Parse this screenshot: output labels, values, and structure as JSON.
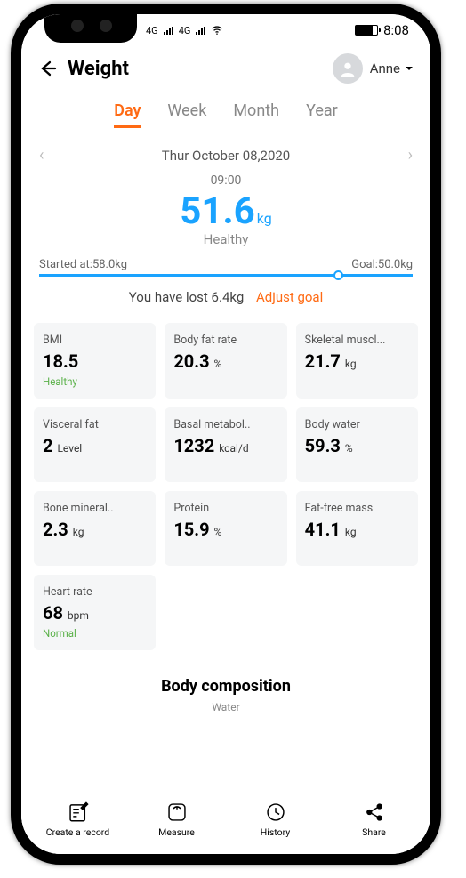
{
  "status_bar": {
    "signal_label_1": "4G",
    "signal_label_2": "4G",
    "time": "8:08",
    "battery_level_pct": 80
  },
  "header": {
    "title": "Weight",
    "user_name": "Anne"
  },
  "tabs": {
    "items": [
      "Day",
      "Week",
      "Month",
      "Year"
    ],
    "active_index": 0
  },
  "date_nav": {
    "date": "Thur October 08,2020"
  },
  "measurement": {
    "time": "09:00",
    "value": "51.6",
    "unit": "kg",
    "status": "Healthy"
  },
  "progress": {
    "start_label": "Started at:58.0kg",
    "goal_label": "Goal:50.0kg",
    "progress_pct": 80,
    "message": "You have lost 6.4kg",
    "adjust_label": "Adjust goal"
  },
  "metrics": [
    {
      "title": "BMI",
      "value": "18.5",
      "unit": "",
      "status": "Healthy",
      "status_class": "status-healthy"
    },
    {
      "title": "Body fat rate",
      "value": "20.3",
      "unit": "%",
      "status": "",
      "status_class": ""
    },
    {
      "title": "Skeletal muscl...",
      "value": "21.7",
      "unit": "kg",
      "status": "",
      "status_class": ""
    },
    {
      "title": "Visceral fat",
      "value": "2",
      "unit": "Level",
      "status": "",
      "status_class": ""
    },
    {
      "title": "Basal metabol..",
      "value": "1232",
      "unit": "kcal/d",
      "status": "",
      "status_class": ""
    },
    {
      "title": "Body water",
      "value": "59.3",
      "unit": "%",
      "status": "",
      "status_class": ""
    },
    {
      "title": "Bone mineral..",
      "value": "2.3",
      "unit": "kg",
      "status": "",
      "status_class": ""
    },
    {
      "title": "Protein",
      "value": "15.9",
      "unit": "%",
      "status": "",
      "status_class": ""
    },
    {
      "title": "Fat-free mass",
      "value": "41.1",
      "unit": "kg",
      "status": "",
      "status_class": ""
    },
    {
      "title": "Heart rate",
      "value": "68",
      "unit": "bpm",
      "status": "Normal",
      "status_class": "status-normal"
    }
  ],
  "body_composition": {
    "title": "Body composition",
    "subtitle": "Water"
  },
  "bottom_nav": {
    "items": [
      {
        "label": "Create a record"
      },
      {
        "label": "Measure"
      },
      {
        "label": "History"
      },
      {
        "label": "Share"
      }
    ]
  },
  "colors": {
    "accent_orange": "#ff6a13",
    "accent_blue": "#1aa3ff",
    "card_bg": "#f5f6f7",
    "status_green": "#5bb14a"
  }
}
